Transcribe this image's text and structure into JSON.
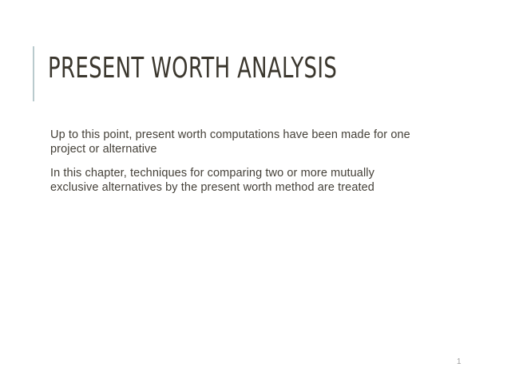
{
  "slide": {
    "title": "PRESENT WORTH ANALYSIS",
    "paragraphs": [
      {
        "lines": [
          "Up to this point, present worth computations have been made for one",
          "project or alternative"
        ]
      },
      {
        "lines": [
          "In this chapter, techniques for comparing two or more mutually",
          "exclusive alternatives by the present worth method are treated"
        ]
      }
    ],
    "page_number": "1",
    "colors": {
      "background": "#ffffff",
      "title_text": "#3b372e",
      "body_text": "#454139",
      "accent_bar": "#b9cacd",
      "page_number_text": "#9c9c9c"
    }
  }
}
